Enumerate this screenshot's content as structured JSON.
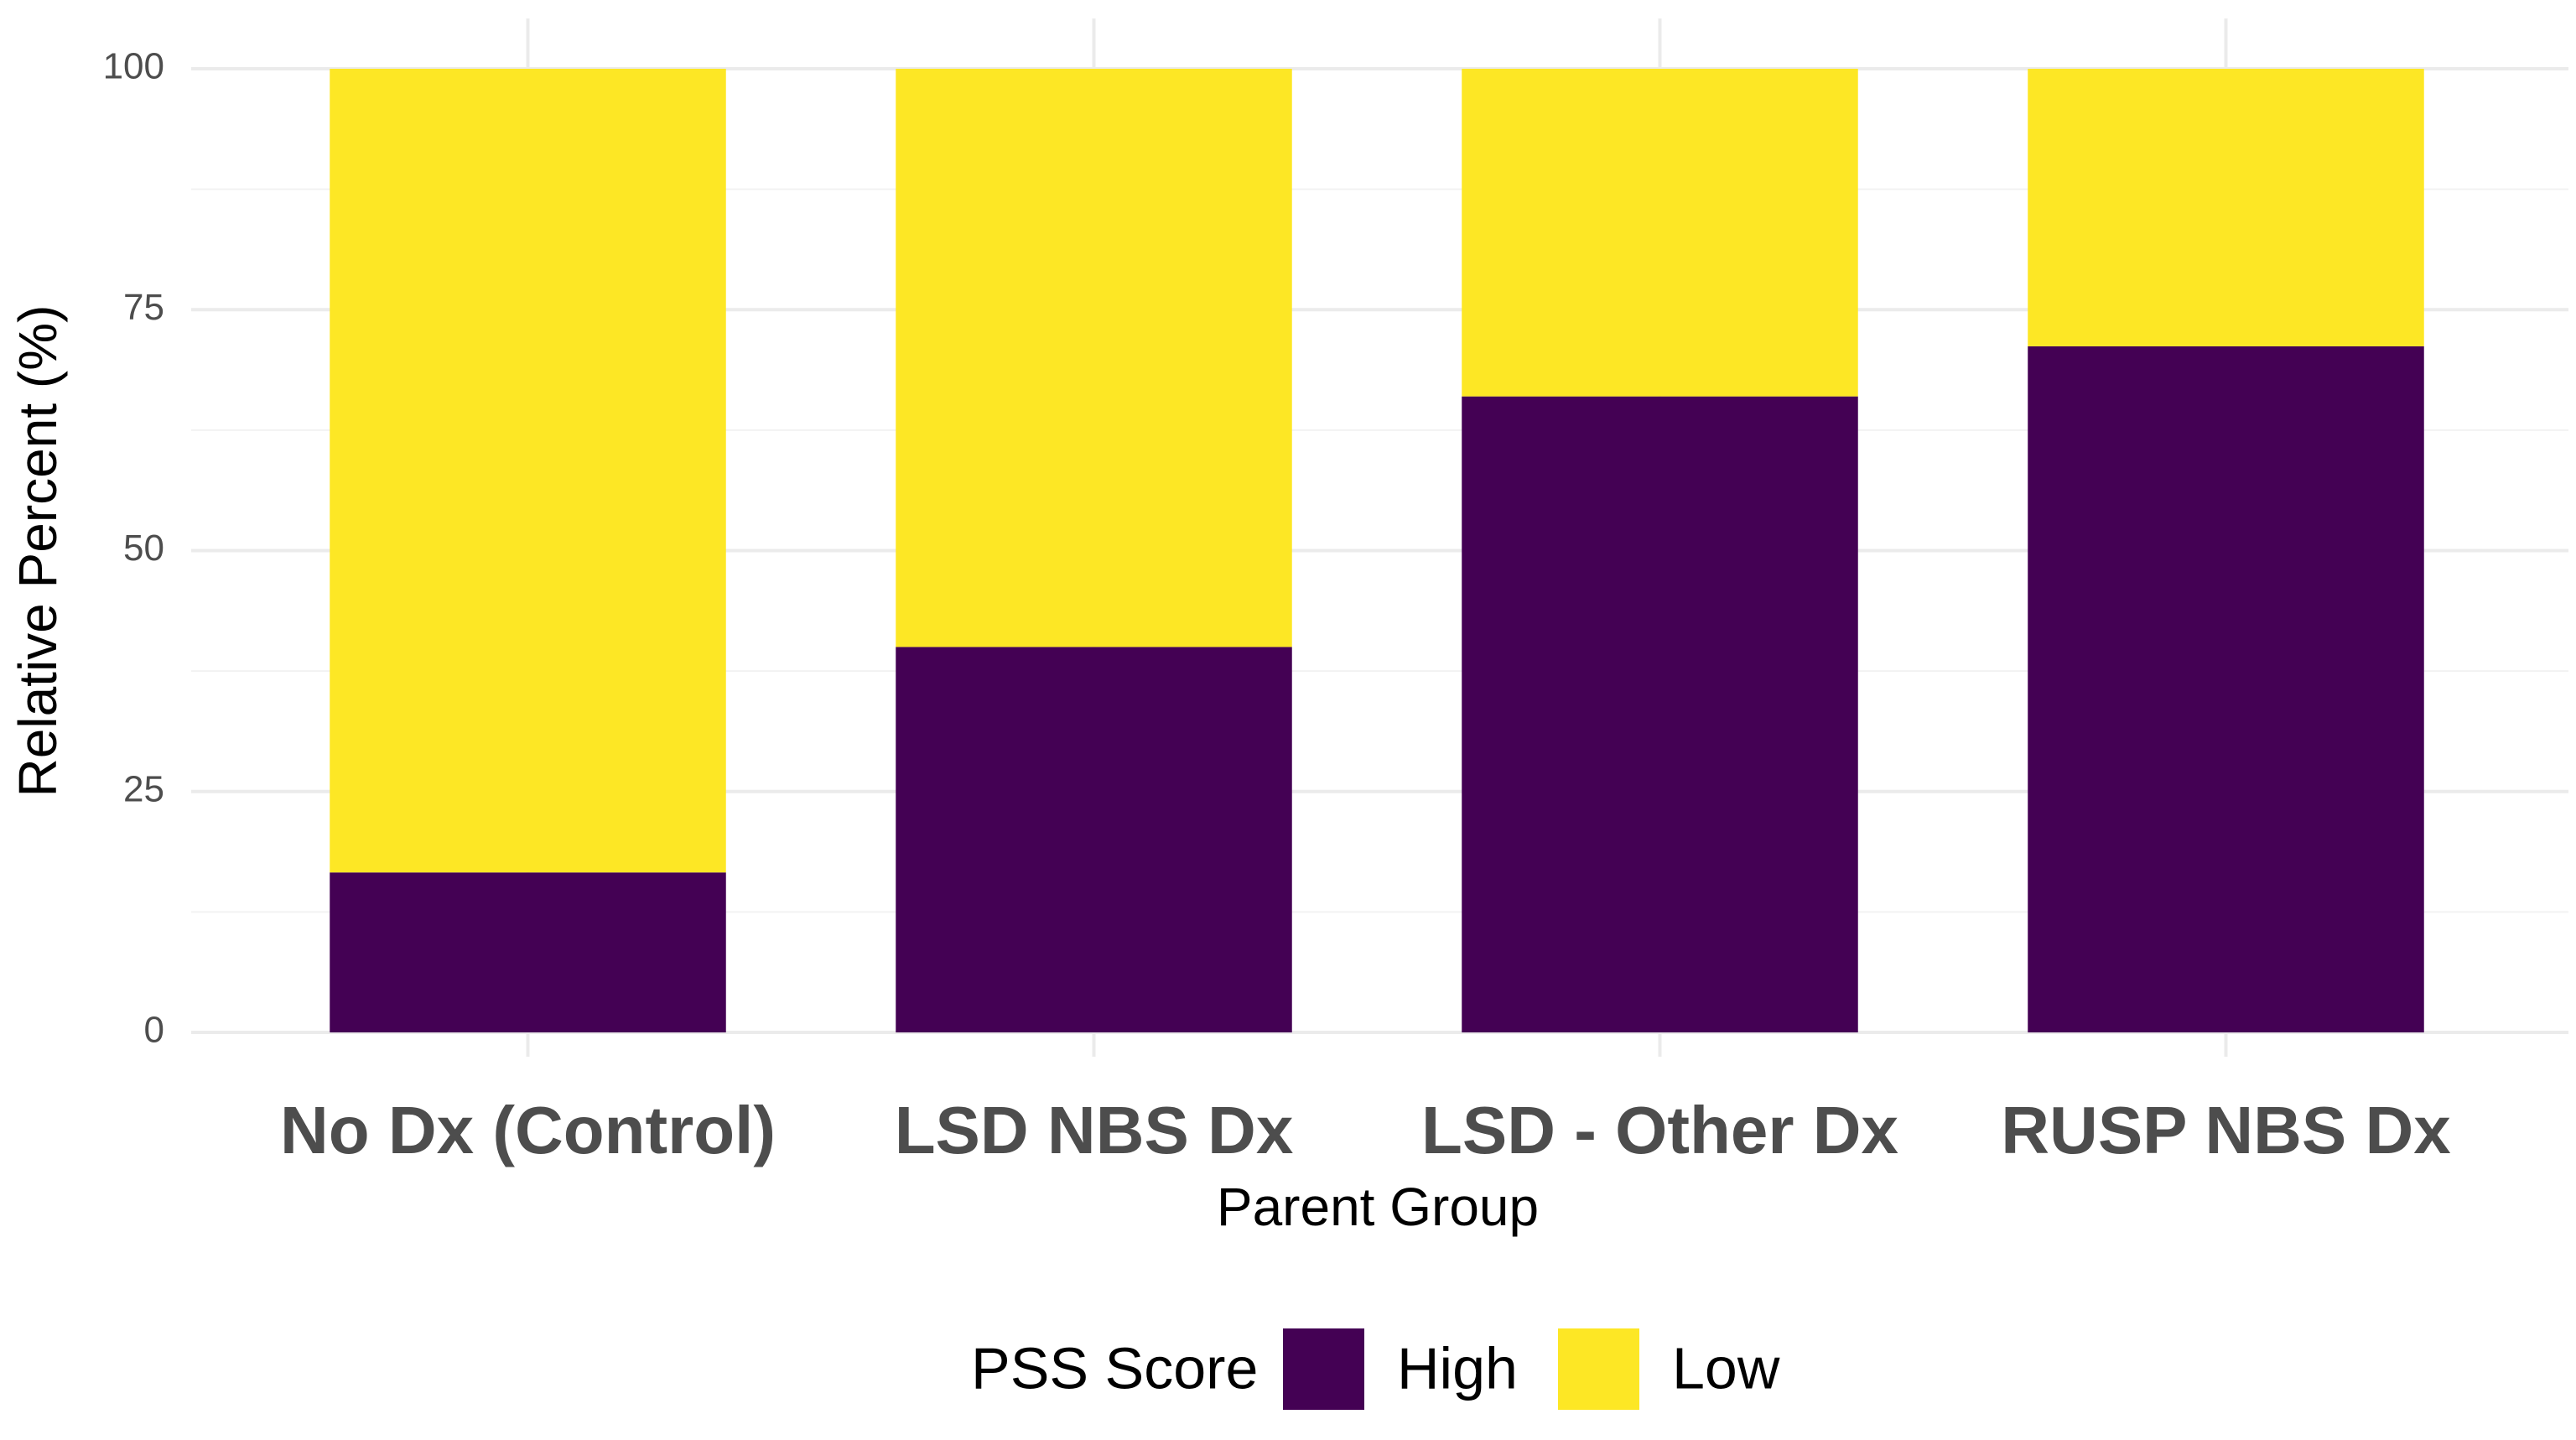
{
  "chart_data": {
    "type": "stacked_bar",
    "x_label": "Parent Group",
    "y_label": "Relative Percent (%)",
    "categories": [
      "No Dx (Control)",
      "LSD NBS Dx",
      "LSD - Other Dx",
      "RUSP NBS Dx"
    ],
    "series": [
      {
        "name": "High",
        "color": "#440154",
        "values": [
          16.6,
          40,
          66,
          71.2
        ]
      },
      {
        "name": "Low",
        "color": "#fde725",
        "values": [
          83.4,
          60,
          34,
          28.8
        ]
      }
    ],
    "ylim": [
      0,
      100
    ],
    "yticks": [
      0,
      25,
      50,
      75,
      100
    ],
    "grid": true,
    "legend_title": "PSS Score",
    "legend_position": "bottom"
  }
}
